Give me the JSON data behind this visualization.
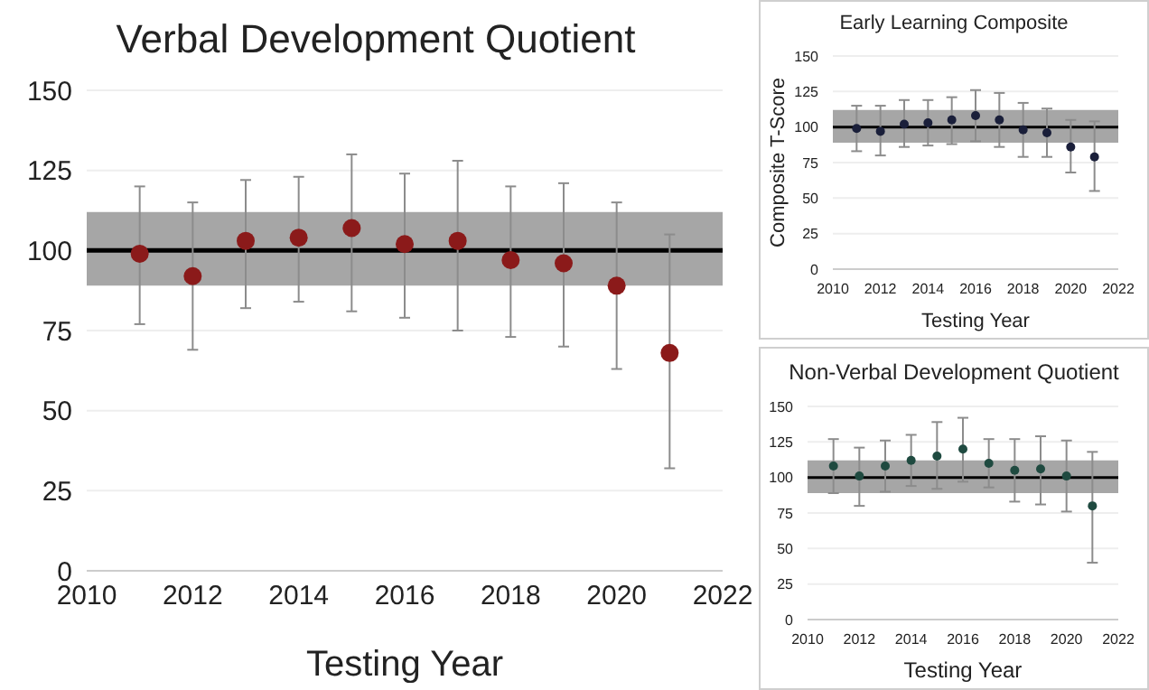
{
  "chart_data": [
    {
      "type": "scatter",
      "title": "Verbal Development Quotient",
      "xlabel": "Testing Year",
      "x": [
        2011,
        2012,
        2013,
        2014,
        2015,
        2016,
        2017,
        2018,
        2019,
        2020,
        2021
      ],
      "values": [
        99,
        92,
        103,
        104,
        107,
        102,
        103,
        97,
        96,
        89,
        68
      ],
      "errors": [
        [
          77,
          120
        ],
        [
          69,
          115
        ],
        [
          82,
          122
        ],
        [
          84,
          123
        ],
        [
          81,
          130
        ],
        [
          79,
          124
        ],
        [
          75,
          128
        ],
        [
          73,
          120
        ],
        [
          70,
          121
        ],
        [
          63,
          115
        ],
        [
          32,
          105
        ]
      ],
      "color": "#8b1a1a",
      "marker": "circle",
      "xlim": [
        2010,
        2022
      ],
      "xticks": [
        2010,
        2012,
        2014,
        2016,
        2018,
        2020,
        2022
      ],
      "ylim": [
        0,
        150
      ],
      "yticks": [
        0,
        25,
        50,
        75,
        100,
        125,
        150
      ],
      "grid": "y",
      "ref_lines": [
        {
          "axis": "y",
          "value": 100,
          "color": "#000000"
        }
      ],
      "bands": [
        {
          "axis": "y",
          "from": 89,
          "to": 112,
          "color": "#a6a6a6"
        }
      ]
    },
    {
      "type": "scatter",
      "title": "Early Learning Composite",
      "xlabel": "Testing Year",
      "ylabel": "Composite T-Score",
      "x": [
        2011,
        2012,
        2013,
        2014,
        2015,
        2016,
        2017,
        2018,
        2019,
        2020,
        2021
      ],
      "values": [
        99,
        97,
        102,
        103,
        105,
        108,
        105,
        98,
        96,
        86,
        79
      ],
      "errors": [
        [
          83,
          115
        ],
        [
          80,
          115
        ],
        [
          86,
          119
        ],
        [
          87,
          119
        ],
        [
          88,
          121
        ],
        [
          90,
          126
        ],
        [
          86,
          124
        ],
        [
          79,
          117
        ],
        [
          79,
          113
        ],
        [
          68,
          105
        ],
        [
          55,
          104
        ]
      ],
      "color": "#1a1f3a",
      "marker": "circle",
      "xlim": [
        2010,
        2022
      ],
      "xticks": [
        2010,
        2012,
        2014,
        2016,
        2018,
        2020,
        2022
      ],
      "ylim": [
        0,
        150
      ],
      "yticks": [
        0,
        25,
        50,
        75,
        100,
        125,
        150
      ],
      "grid": "y",
      "ref_lines": [
        {
          "axis": "y",
          "value": 100,
          "color": "#000000"
        }
      ],
      "bands": [
        {
          "axis": "y",
          "from": 89,
          "to": 112,
          "color": "#a6a6a6"
        }
      ]
    },
    {
      "type": "scatter",
      "title": "Non-Verbal Development Quotient",
      "xlabel": "Testing Year",
      "x": [
        2011,
        2012,
        2013,
        2014,
        2015,
        2016,
        2017,
        2018,
        2019,
        2020,
        2021
      ],
      "values": [
        108,
        101,
        108,
        112,
        115,
        120,
        110,
        105,
        106,
        101,
        80
      ],
      "errors": [
        [
          89,
          127
        ],
        [
          80,
          121
        ],
        [
          90,
          126
        ],
        [
          94,
          130
        ],
        [
          92,
          139
        ],
        [
          97,
          142
        ],
        [
          93,
          127
        ],
        [
          83,
          127
        ],
        [
          81,
          129
        ],
        [
          76,
          126
        ],
        [
          40,
          118
        ]
      ],
      "color": "#1f4a40",
      "marker": "circle",
      "xlim": [
        2010,
        2022
      ],
      "xticks": [
        2010,
        2012,
        2014,
        2016,
        2018,
        2020,
        2022
      ],
      "ylim": [
        0,
        150
      ],
      "yticks": [
        0,
        25,
        50,
        75,
        100,
        125,
        150
      ],
      "grid": "y",
      "ref_lines": [
        {
          "axis": "y",
          "value": 100,
          "color": "#000000"
        }
      ],
      "bands": [
        {
          "axis": "y",
          "from": 89,
          "to": 112,
          "color": "#a6a6a6"
        }
      ]
    }
  ]
}
